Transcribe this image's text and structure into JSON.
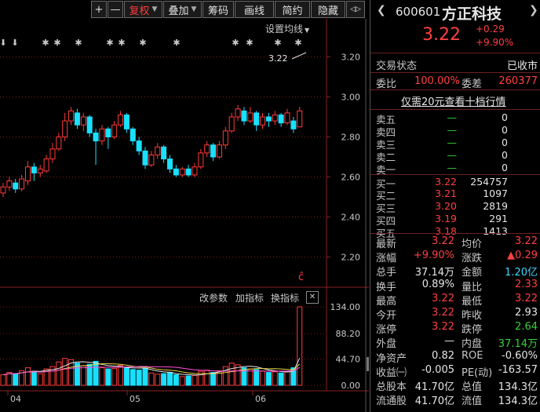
{
  "toolbar": {
    "plus": "+",
    "minus": "—",
    "fuquan": "复权",
    "diejia": "叠加",
    "chouma": "筹码",
    "huaxian": "画线",
    "jianyi": "简约",
    "yincang": "隐藏",
    "collapse": "◁▷"
  },
  "kline": {
    "setting_ma": "设置均线",
    "price_ticks": [
      "3.20",
      "3.00",
      "2.80",
      "2.60",
      "2.40",
      "2.20"
    ],
    "last_price_label": "3.22",
    "buy_marker": "ĉ"
  },
  "volume_panel": {
    "change_params": "改参数",
    "add_indicator": "加指标",
    "switch_indicator": "换指标",
    "close": "✕",
    "vol_ticks": [
      "134.00",
      "88.20",
      "44.70",
      "0.00"
    ],
    "x_labels": [
      "04",
      "05",
      "06"
    ]
  },
  "chart_data": {
    "type": "candlestick",
    "price_range": [
      2.1,
      3.3
    ],
    "candles": [
      {
        "o": 2.52,
        "c": 2.55,
        "h": 2.57,
        "l": 2.5,
        "v": 18
      },
      {
        "o": 2.55,
        "c": 2.58,
        "h": 2.6,
        "l": 2.53,
        "v": 22
      },
      {
        "o": 2.57,
        "c": 2.54,
        "h": 2.59,
        "l": 2.52,
        "v": 20
      },
      {
        "o": 2.54,
        "c": 2.59,
        "h": 2.61,
        "l": 2.53,
        "v": 25
      },
      {
        "o": 2.58,
        "c": 2.65,
        "h": 2.68,
        "l": 2.56,
        "v": 30
      },
      {
        "o": 2.65,
        "c": 2.62,
        "h": 2.67,
        "l": 2.58,
        "v": 24
      },
      {
        "o": 2.62,
        "c": 2.64,
        "h": 2.66,
        "l": 2.6,
        "v": 20
      },
      {
        "o": 2.63,
        "c": 2.69,
        "h": 2.71,
        "l": 2.62,
        "v": 28
      },
      {
        "o": 2.69,
        "c": 2.74,
        "h": 2.77,
        "l": 2.67,
        "v": 32
      },
      {
        "o": 2.74,
        "c": 2.8,
        "h": 2.82,
        "l": 2.73,
        "v": 40
      },
      {
        "o": 2.8,
        "c": 2.88,
        "h": 2.92,
        "l": 2.78,
        "v": 46
      },
      {
        "o": 2.88,
        "c": 2.93,
        "h": 2.95,
        "l": 2.86,
        "v": 44
      },
      {
        "o": 2.92,
        "c": 2.86,
        "h": 2.94,
        "l": 2.84,
        "v": 38
      },
      {
        "o": 2.86,
        "c": 2.9,
        "h": 2.92,
        "l": 2.83,
        "v": 33
      },
      {
        "o": 2.9,
        "c": 2.82,
        "h": 2.91,
        "l": 2.8,
        "v": 36
      },
      {
        "o": 2.82,
        "c": 2.78,
        "h": 2.84,
        "l": 2.66,
        "v": 41
      },
      {
        "o": 2.78,
        "c": 2.84,
        "h": 2.86,
        "l": 2.76,
        "v": 30
      },
      {
        "o": 2.84,
        "c": 2.8,
        "h": 2.85,
        "l": 2.74,
        "v": 28
      },
      {
        "o": 2.8,
        "c": 2.86,
        "h": 2.88,
        "l": 2.79,
        "v": 29
      },
      {
        "o": 2.86,
        "c": 2.91,
        "h": 2.93,
        "l": 2.85,
        "v": 34
      },
      {
        "o": 2.91,
        "c": 2.84,
        "h": 2.92,
        "l": 2.82,
        "v": 31
      },
      {
        "o": 2.84,
        "c": 2.78,
        "h": 2.85,
        "l": 2.76,
        "v": 27
      },
      {
        "o": 2.78,
        "c": 2.73,
        "h": 2.8,
        "l": 2.71,
        "v": 26
      },
      {
        "o": 2.73,
        "c": 2.66,
        "h": 2.75,
        "l": 2.64,
        "v": 29
      },
      {
        "o": 2.66,
        "c": 2.71,
        "h": 2.73,
        "l": 2.65,
        "v": 21
      },
      {
        "o": 2.71,
        "c": 2.75,
        "h": 2.77,
        "l": 2.69,
        "v": 19
      },
      {
        "o": 2.75,
        "c": 2.69,
        "h": 2.76,
        "l": 2.67,
        "v": 20
      },
      {
        "o": 2.69,
        "c": 2.64,
        "h": 2.71,
        "l": 2.62,
        "v": 22
      },
      {
        "o": 2.64,
        "c": 2.61,
        "h": 2.66,
        "l": 2.6,
        "v": 18
      },
      {
        "o": 2.61,
        "c": 2.64,
        "h": 2.65,
        "l": 2.6,
        "v": 15
      },
      {
        "o": 2.64,
        "c": 2.61,
        "h": 2.66,
        "l": 2.6,
        "v": 16
      },
      {
        "o": 2.61,
        "c": 2.65,
        "h": 2.67,
        "l": 2.6,
        "v": 17
      },
      {
        "o": 2.65,
        "c": 2.72,
        "h": 2.74,
        "l": 2.64,
        "v": 24
      },
      {
        "o": 2.72,
        "c": 2.76,
        "h": 2.78,
        "l": 2.7,
        "v": 26
      },
      {
        "o": 2.76,
        "c": 2.7,
        "h": 2.77,
        "l": 2.68,
        "v": 22
      },
      {
        "o": 2.7,
        "c": 2.76,
        "h": 2.78,
        "l": 2.69,
        "v": 25
      },
      {
        "o": 2.76,
        "c": 2.83,
        "h": 2.85,
        "l": 2.74,
        "v": 32
      },
      {
        "o": 2.83,
        "c": 2.9,
        "h": 2.92,
        "l": 2.82,
        "v": 38
      },
      {
        "o": 2.9,
        "c": 2.94,
        "h": 2.96,
        "l": 2.88,
        "v": 35
      },
      {
        "o": 2.93,
        "c": 2.88,
        "h": 2.95,
        "l": 2.86,
        "v": 30
      },
      {
        "o": 2.88,
        "c": 2.92,
        "h": 2.95,
        "l": 2.87,
        "v": 28
      },
      {
        "o": 2.92,
        "c": 2.86,
        "h": 2.93,
        "l": 2.83,
        "v": 27
      },
      {
        "o": 2.86,
        "c": 2.9,
        "h": 2.92,
        "l": 2.84,
        "v": 24
      },
      {
        "o": 2.9,
        "c": 2.88,
        "h": 2.92,
        "l": 2.85,
        "v": 22
      },
      {
        "o": 2.88,
        "c": 2.91,
        "h": 2.93,
        "l": 2.86,
        "v": 23
      },
      {
        "o": 2.91,
        "c": 2.87,
        "h": 2.92,
        "l": 2.85,
        "v": 21
      },
      {
        "o": 2.87,
        "c": 2.92,
        "h": 2.94,
        "l": 2.86,
        "v": 24
      },
      {
        "o": 2.88,
        "c": 2.84,
        "h": 2.9,
        "l": 2.82,
        "v": 30
      },
      {
        "o": 2.85,
        "c": 2.93,
        "h": 2.95,
        "l": 2.85,
        "v": 134
      }
    ],
    "markers": [
      "⬇",
      "⬇",
      "✱✱",
      "✱",
      "✱✱",
      "✱",
      "✱✱",
      "✱",
      "✱",
      "✱"
    ]
  },
  "quote": {
    "code": "600601",
    "name": "方正科技",
    "price": "3.22",
    "change": "+0.29",
    "change_pct": "+9.90%"
  },
  "status": {
    "label": "交易状态",
    "value": "已收市",
    "weibi_label": "委比",
    "weibi_value": "100.00%",
    "weicha_label": "委差",
    "weicha_value": "260377",
    "link": "仅需20元查看十档行情"
  },
  "orderbook": {
    "sells": [
      {
        "label": "卖五",
        "price": "—",
        "vol": "0"
      },
      {
        "label": "卖四",
        "price": "—",
        "vol": "0"
      },
      {
        "label": "卖三",
        "price": "—",
        "vol": "0"
      },
      {
        "label": "卖二",
        "price": "—",
        "vol": "0"
      },
      {
        "label": "卖一",
        "price": "—",
        "vol": "0"
      }
    ],
    "buys": [
      {
        "label": "买一",
        "price": "3.22",
        "vol": "254757"
      },
      {
        "label": "买二",
        "price": "3.21",
        "vol": "1097"
      },
      {
        "label": "买三",
        "price": "3.20",
        "vol": "2819"
      },
      {
        "label": "买四",
        "price": "3.19",
        "vol": "291"
      },
      {
        "label": "买五",
        "price": "3.18",
        "vol": "1413"
      }
    ]
  },
  "stats": [
    {
      "l1": "最新",
      "v1": "3.22",
      "c1": "red",
      "l2": "均价",
      "v2": "3.22",
      "c2": "red"
    },
    {
      "l1": "涨幅",
      "v1": "+9.90%",
      "c1": "red",
      "l2": "涨跌",
      "v2": "▲0.29",
      "c2": "red"
    },
    {
      "l1": "总手",
      "v1": "37.14万",
      "c1": "white",
      "l2": "金额",
      "v2": "1.20亿",
      "c2": "cyan"
    },
    {
      "l1": "换手",
      "v1": "0.89%",
      "c1": "white",
      "l2": "量比",
      "v2": "2.33",
      "c2": "red"
    },
    {
      "l1": "最高",
      "v1": "3.22",
      "c1": "red",
      "l2": "最低",
      "v2": "3.22",
      "c2": "red"
    },
    {
      "l1": "今开",
      "v1": "3.22",
      "c1": "red",
      "l2": "昨收",
      "v2": "2.93",
      "c2": "white"
    },
    {
      "l1": "涨停",
      "v1": "3.22",
      "c1": "red",
      "l2": "跌停",
      "v2": "2.64",
      "c2": "green"
    },
    {
      "l1": "外盘",
      "v1": "—",
      "c1": "white",
      "l2": "内盘",
      "v2": "37.14万",
      "c2": "green"
    },
    {
      "l1": "净资产",
      "v1": "0.82",
      "c1": "white",
      "l2": "ROE",
      "v2": "-0.60%",
      "c2": "white"
    },
    {
      "l1": "收益㈠",
      "v1": "-0.005",
      "c1": "white",
      "l2": "PE(动)",
      "v2": "-163.57",
      "c2": "white"
    },
    {
      "l1": "总股本",
      "v1": "41.70亿",
      "c1": "white",
      "l2": "总值",
      "v2": "134.3亿",
      "c2": "white"
    },
    {
      "l1": "流通股",
      "v1": "41.70亿",
      "c1": "white",
      "l2": "流值",
      "v2": "134.3亿",
      "c2": "white"
    }
  ],
  "colors": {
    "up": "#ff3b3b",
    "down": "#19e0ff",
    "grid": "#7a1a1a",
    "bg": "#000000"
  }
}
